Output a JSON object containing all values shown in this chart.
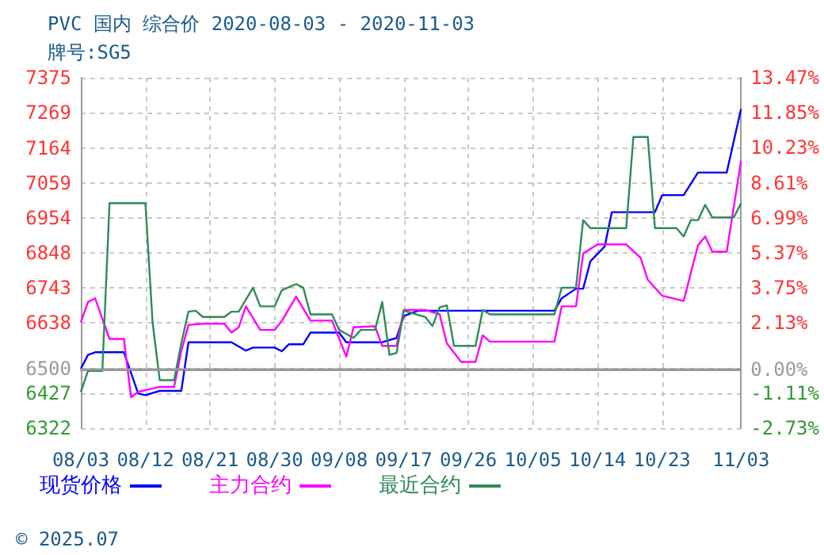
{
  "chart_data": {
    "type": "line",
    "title": "PVC 国内 综合价 2020-08-03 - 2020-11-03",
    "subtitle": "牌号:SG5",
    "annotations": [
      "© 2025.07"
    ],
    "xlim": [
      "2020-08-03",
      "2020-11-03"
    ],
    "xticks": [
      {
        "value": "2020-08-03",
        "label": "08/03"
      },
      {
        "value": "2020-08-12",
        "label": "08/12"
      },
      {
        "value": "2020-08-21",
        "label": "08/21"
      },
      {
        "value": "2020-08-30",
        "label": "08/30"
      },
      {
        "value": "2020-09-08",
        "label": "09/08"
      },
      {
        "value": "2020-09-17",
        "label": "09/17"
      },
      {
        "value": "2020-09-26",
        "label": "09/26"
      },
      {
        "value": "2020-10-05",
        "label": "10/05"
      },
      {
        "value": "2020-10-14",
        "label": "10/14"
      },
      {
        "value": "2020-10-23",
        "label": "10/23"
      },
      {
        "value": "2020-11-03",
        "label": "11/03"
      }
    ],
    "ylim": [
      6322,
      7375
    ],
    "yticks": [
      6322,
      6427,
      6500,
      6638,
      6743,
      6848,
      6954,
      7059,
      7164,
      7269,
      7375
    ],
    "y2lim": [
      -2.73,
      13.47
    ],
    "y2ticks": [
      {
        "value": -2.73,
        "label": "-2.73%"
      },
      {
        "value": -1.11,
        "label": "-1.11%"
      },
      {
        "value": 0,
        "label": "0.00%"
      },
      {
        "value": 2.13,
        "label": "2.13%"
      },
      {
        "value": 3.75,
        "label": "3.75%"
      },
      {
        "value": 5.37,
        "label": "5.37%"
      },
      {
        "value": 6.99,
        "label": "6.99%"
      },
      {
        "value": 8.61,
        "label": "8.61%"
      },
      {
        "value": 10.23,
        "label": "10.23%"
      },
      {
        "value": 11.85,
        "label": "11.85%"
      },
      {
        "value": 13.47,
        "label": "13.47%"
      }
    ],
    "ref_lines": [
      {
        "axis": "y",
        "value": 6500,
        "color": "#999999"
      }
    ],
    "grid": true,
    "legend": "bottom",
    "marker": "none",
    "line_style": "solid",
    "series": [
      {
        "name": "现货价格",
        "color": "#0000ff",
        "x": [
          "2020-08-03",
          "2020-08-04",
          "2020-08-05",
          "2020-08-09",
          "2020-08-11",
          "2020-08-12",
          "2020-08-14",
          "2020-08-17",
          "2020-08-18",
          "2020-08-24",
          "2020-08-26",
          "2020-08-27",
          "2020-08-30",
          "2020-08-31",
          "2020-09-01",
          "2020-09-03",
          "2020-09-04",
          "2020-09-08",
          "2020-09-09",
          "2020-09-14",
          "2020-09-16",
          "2020-09-17",
          "2020-09-19",
          "2020-10-08",
          "2020-10-09",
          "2020-10-11",
          "2020-10-12",
          "2020-10-13",
          "2020-10-15",
          "2020-10-16",
          "2020-10-22",
          "2020-10-23",
          "2020-10-26",
          "2020-10-28",
          "2020-11-01",
          "2020-11-03"
        ],
        "values": [
          6500,
          6542,
          6550,
          6550,
          6426,
          6421,
          6434,
          6434,
          6580,
          6580,
          6555,
          6564,
          6564,
          6553,
          6574,
          6574,
          6609,
          6609,
          6580,
          6580,
          6593,
          6659,
          6675,
          6675,
          6712,
          6741,
          6741,
          6823,
          6868,
          6971,
          6971,
          7022,
          7022,
          7090,
          7090,
          7281
        ]
      },
      {
        "name": "主力合约",
        "color": "#ff00ff",
        "x": [
          "2020-08-03",
          "2020-08-04",
          "2020-08-05",
          "2020-08-07",
          "2020-08-09",
          "2020-08-10",
          "2020-08-11",
          "2020-08-14",
          "2020-08-16",
          "2020-08-17",
          "2020-08-18",
          "2020-08-20",
          "2020-08-23",
          "2020-08-24",
          "2020-08-25",
          "2020-08-26",
          "2020-08-28",
          "2020-08-30",
          "2020-08-31",
          "2020-09-02",
          "2020-09-04",
          "2020-09-07",
          "2020-09-09",
          "2020-09-10",
          "2020-09-13",
          "2020-09-14",
          "2020-09-16",
          "2020-09-17",
          "2020-09-20",
          "2020-09-22",
          "2020-09-23",
          "2020-09-25",
          "2020-09-27",
          "2020-09-28",
          "2020-09-29",
          "2020-10-08",
          "2020-10-09",
          "2020-10-11",
          "2020-10-12",
          "2020-10-14",
          "2020-10-18",
          "2020-10-20",
          "2020-10-21",
          "2020-10-23",
          "2020-10-26",
          "2020-10-28",
          "2020-10-29",
          "2020-10-30",
          "2020-11-01",
          "2020-11-03"
        ],
        "values": [
          6640,
          6701,
          6712,
          6590,
          6590,
          6415,
          6431,
          6446,
          6446,
          6553,
          6632,
          6636,
          6636,
          6609,
          6625,
          6688,
          6617,
          6617,
          6644,
          6717,
          6645,
          6645,
          6537,
          6625,
          6628,
          6569,
          6569,
          6677,
          6677,
          6664,
          6577,
          6521,
          6521,
          6601,
          6582,
          6582,
          6688,
          6688,
          6847,
          6874,
          6874,
          6834,
          6768,
          6720,
          6704,
          6871,
          6898,
          6852,
          6852,
          7125
        ]
      },
      {
        "name": "最近合约",
        "color": "#2e8b57",
        "x": [
          "2020-08-03",
          "2020-08-04",
          "2020-08-06",
          "2020-08-07",
          "2020-08-12",
          "2020-08-13",
          "2020-08-14",
          "2020-08-16",
          "2020-08-17",
          "2020-08-18",
          "2020-08-19",
          "2020-08-20",
          "2020-08-23",
          "2020-08-24",
          "2020-08-25",
          "2020-08-27",
          "2020-08-28",
          "2020-08-30",
          "2020-08-31",
          "2020-09-02",
          "2020-09-03",
          "2020-09-04",
          "2020-09-07",
          "2020-09-08",
          "2020-09-10",
          "2020-09-11",
          "2020-09-13",
          "2020-09-14",
          "2020-09-15",
          "2020-09-16",
          "2020-09-17",
          "2020-09-20",
          "2020-09-21",
          "2020-09-22",
          "2020-09-23",
          "2020-09-24",
          "2020-09-27",
          "2020-09-28",
          "2020-09-29",
          "2020-10-08",
          "2020-10-09",
          "2020-10-11",
          "2020-10-12",
          "2020-10-13",
          "2020-10-18",
          "2020-10-19",
          "2020-10-21",
          "2020-10-22",
          "2020-10-25",
          "2020-10-26",
          "2020-10-27",
          "2020-10-28",
          "2020-10-29",
          "2020-10-30",
          "2020-11-02",
          "2020-11-03"
        ],
        "values": [
          6431,
          6494,
          6494,
          6998,
          6998,
          6640,
          6466,
          6466,
          6577,
          6672,
          6675,
          6656,
          6656,
          6672,
          6672,
          6744,
          6688,
          6688,
          6736,
          6755,
          6744,
          6664,
          6664,
          6617,
          6593,
          6617,
          6617,
          6701,
          6542,
          6548,
          6675,
          6656,
          6629,
          6685,
          6691,
          6569,
          6569,
          6677,
          6664,
          6664,
          6744,
          6744,
          6947,
          6923,
          6923,
          7197,
          7197,
          6923,
          6923,
          6898,
          6947,
          6947,
          6993,
          6955,
          6955,
          6998
        ]
      }
    ]
  }
}
